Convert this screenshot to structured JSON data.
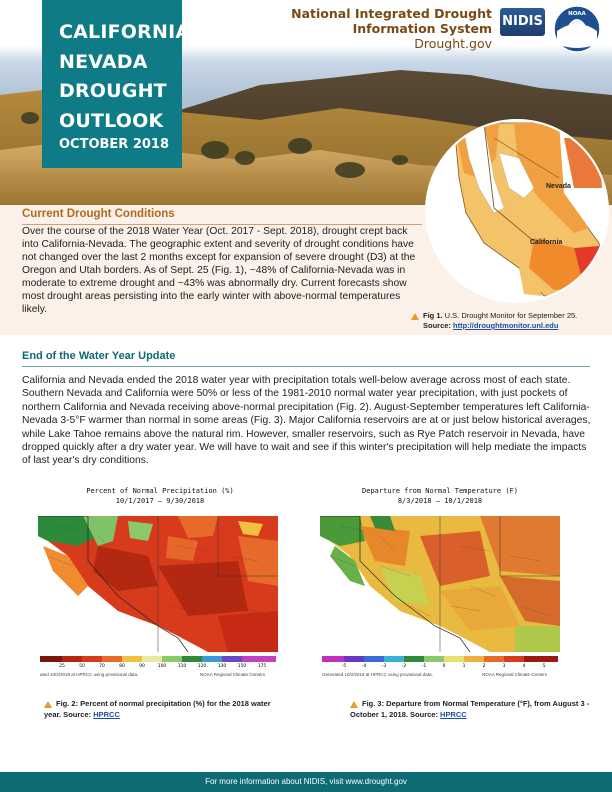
{
  "header": {
    "title_lines": [
      "CALIFORNIA-",
      "NEVADA",
      "DROUGHT",
      "OUTLOOK"
    ],
    "date": "OCTOBER 2018",
    "org_line1": "National Integrated Drought",
    "org_line2": "Information System",
    "org_url": "Drought.gov",
    "nidis_logo": "NIDIS",
    "noaa_logo": "NOAA"
  },
  "current": {
    "heading": "Current Drought Conditions",
    "body": "Over the course of the 2018 Water Year (Oct. 2017 - Sept. 2018), drought crept back into California-Nevada. Southern Nevada and California were 50% or less of the 1981-2010 normal water year precipitation, with just pockets of northern California and Nevada receiving above-normal precipitation (Fig. 2). August-September temperatures left California-Nevada 3-5°F warmer than normal in some areas (Fig. 3). Major California reservoirs are at or just below historical averages, while Lake Tahoe remains above the natural rim. However, smaller reservoirs, such as Rye Patch reservoir in Nevada, have dropped quickly after a dry water year. We will have to wait and see if this winter's precipitation will help mediate the impacts of last year's dry conditions.",
    "body_short": "Over the course of the 2018 Water Year (Oct. 2017 - Sept. 2018), drought crept back into California-Nevada. The geographic extent and severity of drought conditions have not changed over the last 2 months except for expansion of severe drought (D3) at the Oregon and Utah borders. As of Sept. 25 (Fig. 1), ~48% of California-Nevada was in moderate to extreme drought and ~43% was abnormally dry. Current forecasts show most drought areas persisting into the early winter with above-normal temperatures likely."
  },
  "fig1": {
    "label_nevada": "Nevada",
    "label_california": "California",
    "caption_bold": "Fig 1.",
    "caption_text": " U.S. Drought Monitor for September 25.",
    "source_label": "Source: ",
    "source_link": "http://droughtmonitor.unl.edu"
  },
  "eowy": {
    "heading": "End of the Water Year Update",
    "body": "California and Nevada ended the 2018 water year with precipitation totals well-below average across most of each state. Southern Nevada and California were 50% or less of the 1981-2010 normal water year precipitation, with just pockets of northern California and Nevada receiving above-normal precipitation (Fig. 2). August-September temperatures left California-Nevada 3-5°F warmer than normal in some areas (Fig. 3). Major California reservoirs are at or just below historical averages, while Lake Tahoe remains above the natural rim. However, smaller reservoirs, such as Rye Patch reservoir in Nevada, have dropped quickly after a dry water year. We will have to wait and see if this winter's precipitation will help mediate the impacts of last year's dry conditions."
  },
  "fig2": {
    "title1": "Percent of Normal Precipitation (%)",
    "title2": "10/1/2017 – 9/30/2018",
    "legend_labels": [
      "25",
      "50",
      "70",
      "80",
      "90",
      "100",
      "110",
      "120",
      "130",
      "150",
      "175"
    ],
    "footnote_left": "ated 10/2/2018 at HPRCC using provisional data.",
    "footnote_right": "NOAA Regional Climate Centers",
    "caption_bold": "Fig. 2:",
    "caption_text": " Percent of normal precipitation (%) for the 2018 water year. Source: ",
    "caption_link": "HPRCC"
  },
  "fig3": {
    "title1": "Departure from Normal Temperature (F)",
    "title2": "8/3/2018 – 10/1/2018",
    "legend_labels": [
      "-5",
      "-4",
      "-3",
      "-2",
      "-1",
      "0",
      "1",
      "2",
      "3",
      "4",
      "5"
    ],
    "footnote_left": "Generated 10/2/2018 at HPRCC using provisional data.",
    "footnote_right": "NOAA Regional Climate Centers",
    "caption_bold": "Fig. 3:",
    "caption_text": " Departure from Normal Temperature (°F), from August 3 - October 1, 2018. Source: ",
    "caption_link": "HPRCC"
  },
  "footer": {
    "text": "For more information about NIDIS, visit www.drought.gov"
  }
}
